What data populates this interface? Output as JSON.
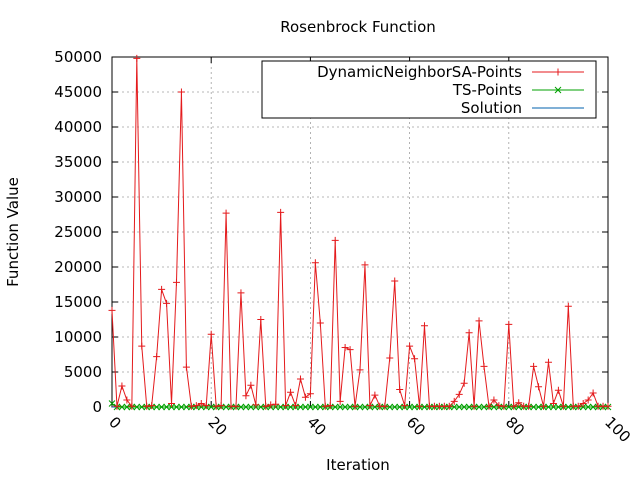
{
  "chart_data": {
    "type": "line",
    "title": "Rosenbrock Function",
    "xlabel": "Iteration",
    "ylabel": "Function Value",
    "xlim": [
      0,
      100
    ],
    "ylim": [
      0,
      50000
    ],
    "xticks": [
      0,
      20,
      40,
      60,
      80,
      100
    ],
    "yticks": [
      0,
      5000,
      10000,
      15000,
      20000,
      25000,
      30000,
      35000,
      40000,
      45000,
      50000
    ],
    "grid": true,
    "legend_position": "top-right",
    "series": [
      {
        "name": "DynamicNeighborSA-Points",
        "color": "#e41a1c",
        "marker": "plus",
        "x": [
          0,
          1,
          2,
          3,
          4,
          5,
          6,
          7,
          8,
          9,
          10,
          11,
          12,
          13,
          14,
          15,
          16,
          17,
          18,
          19,
          20,
          21,
          22,
          23,
          24,
          25,
          26,
          27,
          28,
          29,
          30,
          31,
          32,
          33,
          34,
          35,
          36,
          37,
          38,
          39,
          40,
          41,
          42,
          43,
          44,
          45,
          46,
          47,
          48,
          49,
          50,
          51,
          52,
          53,
          54,
          55,
          56,
          57,
          58,
          59,
          60,
          61,
          62,
          63,
          64,
          65,
          66,
          67,
          68,
          69,
          70,
          71,
          72,
          73,
          74,
          75,
          76,
          77,
          78,
          79,
          80,
          81,
          82,
          83,
          84,
          85,
          86,
          87,
          88,
          89,
          90,
          91,
          92,
          93,
          94,
          95,
          96,
          97,
          98,
          99,
          100
        ],
        "values": [
          13800,
          100,
          3000,
          1000,
          100,
          49800,
          8700,
          100,
          200,
          7200,
          16800,
          14800,
          500,
          17800,
          45000,
          5700,
          100,
          200,
          500,
          200,
          10400,
          100,
          200,
          27700,
          100,
          100,
          16300,
          1600,
          3100,
          300,
          12500,
          100,
          300,
          400,
          27800,
          200,
          2100,
          200,
          4000,
          1400,
          1900,
          20600,
          12000,
          100,
          200,
          23800,
          800,
          8500,
          8200,
          100,
          5300,
          20300,
          200,
          1700,
          100,
          100,
          7000,
          18000,
          2500,
          200,
          8700,
          6900,
          100,
          11600,
          100,
          100,
          100,
          100,
          100,
          800,
          1800,
          3400,
          10600,
          100,
          12300,
          5800,
          100,
          1000,
          200,
          100,
          11800,
          100,
          600,
          100,
          100,
          5800,
          2900,
          100,
          6400,
          500,
          2400,
          100,
          14400,
          100,
          100,
          500,
          1000,
          2000,
          100,
          100,
          100
        ],
        "values_note_removed": true
      },
      {
        "name": "TS-Points",
        "color": "#00a000",
        "marker": "x",
        "constant_value": 0,
        "start_value": 500
      },
      {
        "name": "Solution",
        "color": "#0060ad",
        "marker": "none",
        "constant_value": 0
      }
    ]
  }
}
